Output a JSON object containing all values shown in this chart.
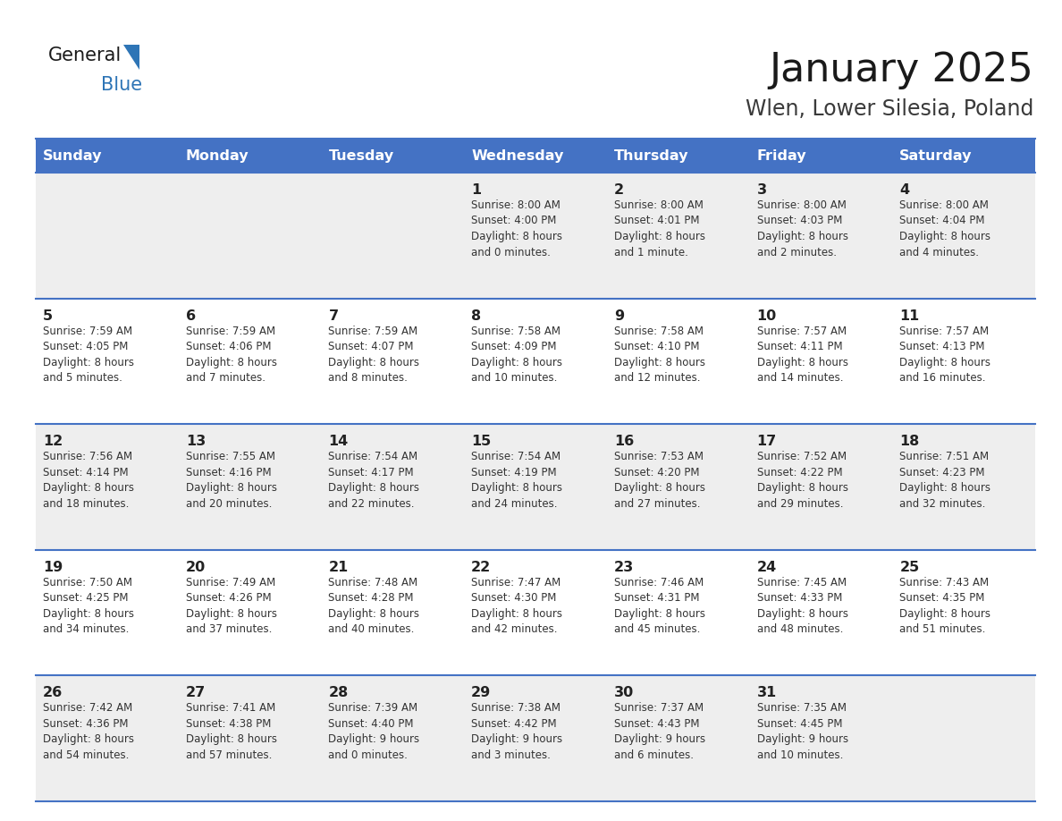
{
  "title": "January 2025",
  "subtitle": "Wlen, Lower Silesia, Poland",
  "header_bg": "#4472C4",
  "header_text_color": "#FFFFFF",
  "header_days": [
    "Sunday",
    "Monday",
    "Tuesday",
    "Wednesday",
    "Thursday",
    "Friday",
    "Saturday"
  ],
  "row_bg_odd": "#EEEEEE",
  "row_bg_even": "#FFFFFF",
  "cell_border_color": "#4472C4",
  "day_number_color": "#222222",
  "text_color": "#333333",
  "calendar": [
    [
      {
        "day": null,
        "info": null
      },
      {
        "day": null,
        "info": null
      },
      {
        "day": null,
        "info": null
      },
      {
        "day": 1,
        "info": "Sunrise: 8:00 AM\nSunset: 4:00 PM\nDaylight: 8 hours\nand 0 minutes."
      },
      {
        "day": 2,
        "info": "Sunrise: 8:00 AM\nSunset: 4:01 PM\nDaylight: 8 hours\nand 1 minute."
      },
      {
        "day": 3,
        "info": "Sunrise: 8:00 AM\nSunset: 4:03 PM\nDaylight: 8 hours\nand 2 minutes."
      },
      {
        "day": 4,
        "info": "Sunrise: 8:00 AM\nSunset: 4:04 PM\nDaylight: 8 hours\nand 4 minutes."
      }
    ],
    [
      {
        "day": 5,
        "info": "Sunrise: 7:59 AM\nSunset: 4:05 PM\nDaylight: 8 hours\nand 5 minutes."
      },
      {
        "day": 6,
        "info": "Sunrise: 7:59 AM\nSunset: 4:06 PM\nDaylight: 8 hours\nand 7 minutes."
      },
      {
        "day": 7,
        "info": "Sunrise: 7:59 AM\nSunset: 4:07 PM\nDaylight: 8 hours\nand 8 minutes."
      },
      {
        "day": 8,
        "info": "Sunrise: 7:58 AM\nSunset: 4:09 PM\nDaylight: 8 hours\nand 10 minutes."
      },
      {
        "day": 9,
        "info": "Sunrise: 7:58 AM\nSunset: 4:10 PM\nDaylight: 8 hours\nand 12 minutes."
      },
      {
        "day": 10,
        "info": "Sunrise: 7:57 AM\nSunset: 4:11 PM\nDaylight: 8 hours\nand 14 minutes."
      },
      {
        "day": 11,
        "info": "Sunrise: 7:57 AM\nSunset: 4:13 PM\nDaylight: 8 hours\nand 16 minutes."
      }
    ],
    [
      {
        "day": 12,
        "info": "Sunrise: 7:56 AM\nSunset: 4:14 PM\nDaylight: 8 hours\nand 18 minutes."
      },
      {
        "day": 13,
        "info": "Sunrise: 7:55 AM\nSunset: 4:16 PM\nDaylight: 8 hours\nand 20 minutes."
      },
      {
        "day": 14,
        "info": "Sunrise: 7:54 AM\nSunset: 4:17 PM\nDaylight: 8 hours\nand 22 minutes."
      },
      {
        "day": 15,
        "info": "Sunrise: 7:54 AM\nSunset: 4:19 PM\nDaylight: 8 hours\nand 24 minutes."
      },
      {
        "day": 16,
        "info": "Sunrise: 7:53 AM\nSunset: 4:20 PM\nDaylight: 8 hours\nand 27 minutes."
      },
      {
        "day": 17,
        "info": "Sunrise: 7:52 AM\nSunset: 4:22 PM\nDaylight: 8 hours\nand 29 minutes."
      },
      {
        "day": 18,
        "info": "Sunrise: 7:51 AM\nSunset: 4:23 PM\nDaylight: 8 hours\nand 32 minutes."
      }
    ],
    [
      {
        "day": 19,
        "info": "Sunrise: 7:50 AM\nSunset: 4:25 PM\nDaylight: 8 hours\nand 34 minutes."
      },
      {
        "day": 20,
        "info": "Sunrise: 7:49 AM\nSunset: 4:26 PM\nDaylight: 8 hours\nand 37 minutes."
      },
      {
        "day": 21,
        "info": "Sunrise: 7:48 AM\nSunset: 4:28 PM\nDaylight: 8 hours\nand 40 minutes."
      },
      {
        "day": 22,
        "info": "Sunrise: 7:47 AM\nSunset: 4:30 PM\nDaylight: 8 hours\nand 42 minutes."
      },
      {
        "day": 23,
        "info": "Sunrise: 7:46 AM\nSunset: 4:31 PM\nDaylight: 8 hours\nand 45 minutes."
      },
      {
        "day": 24,
        "info": "Sunrise: 7:45 AM\nSunset: 4:33 PM\nDaylight: 8 hours\nand 48 minutes."
      },
      {
        "day": 25,
        "info": "Sunrise: 7:43 AM\nSunset: 4:35 PM\nDaylight: 8 hours\nand 51 minutes."
      }
    ],
    [
      {
        "day": 26,
        "info": "Sunrise: 7:42 AM\nSunset: 4:36 PM\nDaylight: 8 hours\nand 54 minutes."
      },
      {
        "day": 27,
        "info": "Sunrise: 7:41 AM\nSunset: 4:38 PM\nDaylight: 8 hours\nand 57 minutes."
      },
      {
        "day": 28,
        "info": "Sunrise: 7:39 AM\nSunset: 4:40 PM\nDaylight: 9 hours\nand 0 minutes."
      },
      {
        "day": 29,
        "info": "Sunrise: 7:38 AM\nSunset: 4:42 PM\nDaylight: 9 hours\nand 3 minutes."
      },
      {
        "day": 30,
        "info": "Sunrise: 7:37 AM\nSunset: 4:43 PM\nDaylight: 9 hours\nand 6 minutes."
      },
      {
        "day": 31,
        "info": "Sunrise: 7:35 AM\nSunset: 4:45 PM\nDaylight: 9 hours\nand 10 minutes."
      },
      {
        "day": null,
        "info": null
      }
    ]
  ],
  "logo_general_color": "#1a1a1a",
  "logo_blue_color": "#2E75B6",
  "title_fontsize": 32,
  "subtitle_fontsize": 17,
  "header_fontsize": 11.5,
  "day_number_fontsize": 11.5,
  "info_fontsize": 8.5
}
